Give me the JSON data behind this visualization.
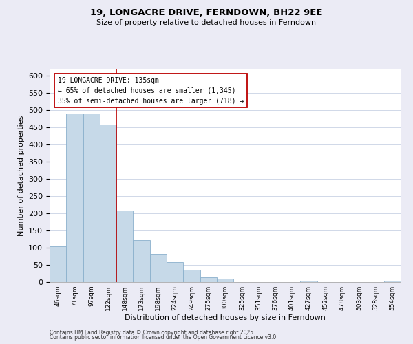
{
  "title": "19, LONGACRE DRIVE, FERNDOWN, BH22 9EE",
  "subtitle": "Size of property relative to detached houses in Ferndown",
  "xlabel": "Distribution of detached houses by size in Ferndown",
  "ylabel": "Number of detached properties",
  "bin_labels": [
    "46sqm",
    "71sqm",
    "97sqm",
    "122sqm",
    "148sqm",
    "173sqm",
    "198sqm",
    "224sqm",
    "249sqm",
    "275sqm",
    "300sqm",
    "325sqm",
    "351sqm",
    "376sqm",
    "401sqm",
    "427sqm",
    "452sqm",
    "478sqm",
    "503sqm",
    "528sqm",
    "554sqm"
  ],
  "bar_heights": [
    105,
    491,
    491,
    458,
    208,
    123,
    82,
    58,
    37,
    15,
    11,
    0,
    0,
    0,
    0,
    5,
    0,
    0,
    0,
    0,
    5
  ],
  "bar_color": "#c6d9e8",
  "bar_edge_color": "#8ab0cc",
  "vline_x": 4,
  "vline_color": "#bb0000",
  "annotation_title": "19 LONGACRE DRIVE: 135sqm",
  "annotation_line1": "← 65% of detached houses are smaller (1,345)",
  "annotation_line2": "35% of semi-detached houses are larger (718) →",
  "annotation_box_color": "#ffffff",
  "annotation_box_edge": "#bb0000",
  "ylim": [
    0,
    620
  ],
  "yticks": [
    0,
    50,
    100,
    150,
    200,
    250,
    300,
    350,
    400,
    450,
    500,
    550,
    600
  ],
  "footnote1": "Contains HM Land Registry data © Crown copyright and database right 2025.",
  "footnote2": "Contains public sector information licensed under the Open Government Licence v3.0.",
  "bg_color": "#ebebf5",
  "plot_bg_color": "#ffffff",
  "grid_color": "#d0d8e8"
}
